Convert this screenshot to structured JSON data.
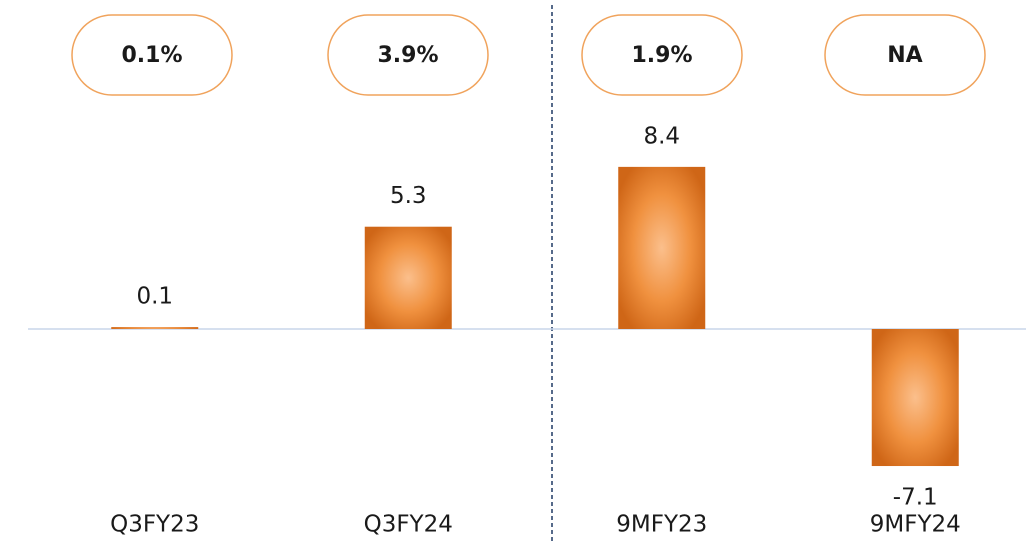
{
  "chart_data": {
    "type": "bar",
    "categories": [
      "Q3FY23",
      "Q3FY24",
      "9MFY23",
      "9MFY24"
    ],
    "values": [
      0.1,
      5.3,
      8.4,
      -7.1
    ],
    "annotations": [
      "0.1%",
      "3.9%",
      "1.9%",
      "NA"
    ],
    "color": "#e07b2a",
    "ylim": [
      -9,
      12
    ]
  }
}
